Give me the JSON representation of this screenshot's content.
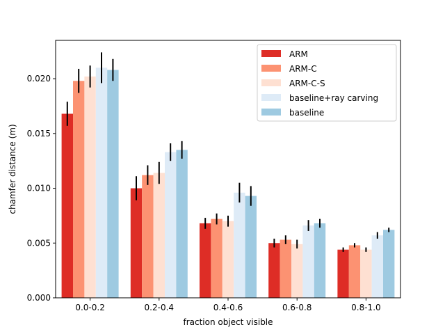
{
  "chart_data": {
    "type": "bar",
    "title": "",
    "xlabel": "fraction object visible",
    "ylabel": "chamfer distance (m)",
    "ylim": [
      0,
      0.0235
    ],
    "yticks": [
      0.0,
      0.005,
      0.01,
      0.015,
      0.02
    ],
    "ytick_labels": [
      "0.000",
      "0.005",
      "0.010",
      "0.015",
      "0.020"
    ],
    "categories": [
      "0.0-0.2",
      "0.2-0.4",
      "0.4-0.6",
      "0.6-0.8",
      "0.8-1.0"
    ],
    "legend_position": "top-right",
    "series": [
      {
        "name": "ARM",
        "color": "#de2d26",
        "values": [
          0.0168,
          0.01,
          0.0068,
          0.005,
          0.0044
        ],
        "errors": [
          0.0011,
          0.0011,
          0.0005,
          0.0004,
          0.0002
        ]
      },
      {
        "name": "ARM-C",
        "color": "#fc9272",
        "values": [
          0.0198,
          0.0112,
          0.0072,
          0.0053,
          0.0048
        ],
        "errors": [
          0.0011,
          0.0009,
          0.0005,
          0.0004,
          0.0002
        ]
      },
      {
        "name": "ARM-C-S",
        "color": "#fee0d2",
        "values": [
          0.0202,
          0.0114,
          0.007,
          0.0049,
          0.0044
        ],
        "errors": [
          0.001,
          0.001,
          0.0005,
          0.0004,
          0.0002
        ]
      },
      {
        "name": "baseline+ray carving",
        "color": "#deebf7",
        "values": [
          0.021,
          0.0133,
          0.0096,
          0.0066,
          0.0057
        ],
        "errors": [
          0.0014,
          0.0008,
          0.0009,
          0.0005,
          0.0003
        ]
      },
      {
        "name": "baseline",
        "color": "#9ecae1",
        "values": [
          0.0208,
          0.0135,
          0.0093,
          0.0068,
          0.0062
        ],
        "errors": [
          0.001,
          0.0008,
          0.0009,
          0.0004,
          0.0002
        ]
      }
    ]
  }
}
